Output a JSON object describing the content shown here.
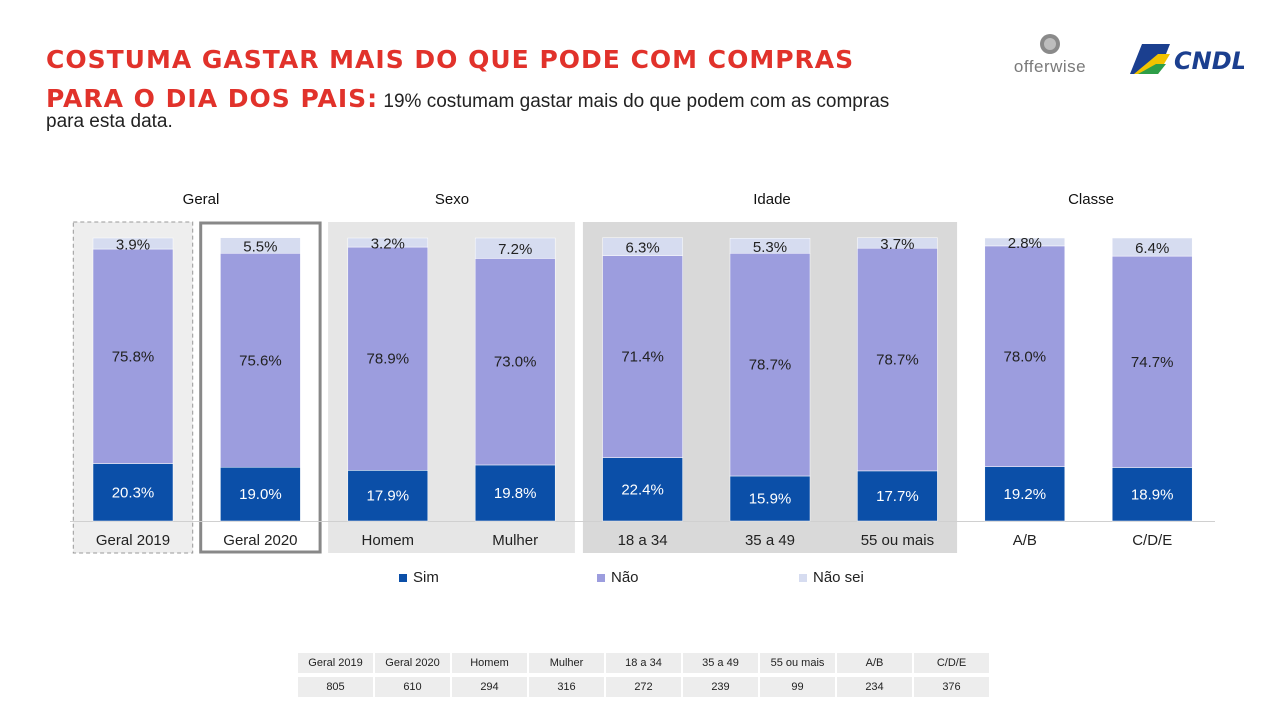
{
  "title": {
    "line1": "COSTUMA GASTAR MAIS DO QUE PODE COM COMPRAS",
    "line2_red": "PARA O DIA DOS PAIS:",
    "line2_rest": " 19% costumam gastar mais do que podem com as compras",
    "line3": "para esta data."
  },
  "logos": {
    "offerwise": "offerwise",
    "cndl": "CNDL"
  },
  "groups": [
    "Geral",
    "Sexo",
    "Idade",
    "Classe"
  ],
  "colors": {
    "sim": "#0b4fa8",
    "nao": "#9c9dde",
    "nao_sei": "#d6dcf0",
    "panel": "#d9d9d9",
    "frame": "#888888"
  },
  "chart_data": {
    "type": "bar",
    "stacked": true,
    "title": "Costuma gastar mais do que pode com compras para o Dia dos Pais",
    "categories": [
      "Geral 2019",
      "Geral 2020",
      "Homem",
      "Mulher",
      "18 a 34",
      "35 a 49",
      "55 ou mais",
      "A/B",
      "C/D/E"
    ],
    "series": [
      {
        "name": "Sim",
        "values": [
          20.3,
          19.0,
          17.9,
          19.8,
          22.4,
          15.9,
          17.7,
          19.2,
          18.9
        ],
        "labels": [
          "20.3%",
          "19.0%",
          "17.9%",
          "19.8%",
          "22.4%",
          "15.9%",
          "17.7%",
          "19.2%",
          "18.9%"
        ]
      },
      {
        "name": "Não",
        "values": [
          75.8,
          75.6,
          78.9,
          73.0,
          71.4,
          78.7,
          78.7,
          78.0,
          74.7
        ],
        "labels": [
          "75.8%",
          "75.6%",
          "78.9%",
          "73.0%",
          "71.4%",
          "78.7%",
          "78.7%",
          "78.0%",
          "74.7%"
        ]
      },
      {
        "name": "Não sei",
        "values": [
          3.9,
          5.5,
          3.2,
          7.2,
          6.3,
          5.3,
          3.7,
          2.8,
          6.4
        ],
        "labels": [
          "3.9%",
          "5.5%",
          "3.2%",
          "7.2%",
          "6.3%",
          "5.3%",
          "3.7%",
          "2.8%",
          "6.4%"
        ]
      }
    ],
    "ylim": [
      0,
      100
    ],
    "legend_position": "bottom",
    "grid": false
  },
  "legend": [
    {
      "key": "sim",
      "label": "Sim"
    },
    {
      "key": "nao",
      "label": "Não"
    },
    {
      "key": "nao_sei",
      "label": "Não sei"
    }
  ],
  "base_table": {
    "headers": [
      "Geral 2019",
      "Geral 2020",
      "Homem",
      "Mulher",
      "18 a 34",
      "35 a 49",
      "55 ou mais",
      "A/B",
      "C/D/E"
    ],
    "values": [
      "805",
      "610",
      "294",
      "316",
      "272",
      "239",
      "99",
      "234",
      "376"
    ]
  }
}
